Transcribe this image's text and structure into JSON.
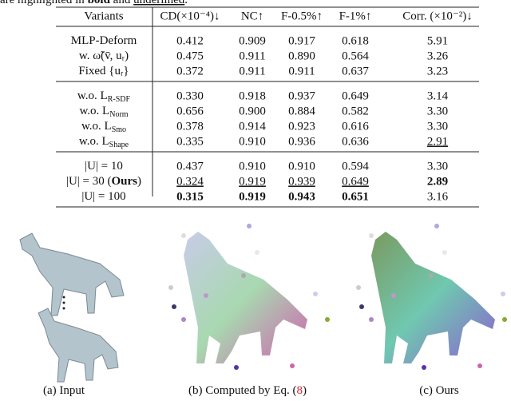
{
  "caption_fragment": [
    {
      "t": "are highlighted in "
    },
    {
      "t": "bold",
      "bold": true
    },
    {
      "t": " and "
    },
    {
      "t": "underlined",
      "underline": true
    },
    {
      "t": "."
    }
  ],
  "table": {
    "header": [
      "Variants",
      "CD(×10⁻⁴)↓",
      "NC↑",
      "F-0.5%↑",
      "F-1%↑",
      "Corr. (×10⁻²)↓"
    ],
    "groups": [
      [
        {
          "label": [
            {
              "t": "MLP-Deform"
            }
          ],
          "cells": [
            "0.412",
            "0.909",
            "0.917",
            "0.618",
            "5.91"
          ]
        },
        {
          "label": [
            {
              "t": "w. ω̃(v̄, uᵣ)"
            }
          ],
          "cells": [
            "0.475",
            "0.911",
            "0.890",
            "0.564",
            "3.26"
          ]
        },
        {
          "label": [
            {
              "t": "Fixed {uᵣ}"
            }
          ],
          "cells": [
            "0.372",
            "0.911",
            "0.911",
            "0.637",
            "3.23"
          ]
        }
      ],
      [
        {
          "label": [
            {
              "t": "w.o. L"
            },
            {
              "t": "R-SDF",
              "sub": true
            }
          ],
          "cells": [
            "0.330",
            "0.918",
            "0.937",
            "0.649",
            "3.14"
          ]
        },
        {
          "label": [
            {
              "t": "w.o. L"
            },
            {
              "t": "Norm",
              "sub": true
            }
          ],
          "cells": [
            "0.656",
            "0.900",
            "0.884",
            "0.582",
            "3.30"
          ]
        },
        {
          "label": [
            {
              "t": "w.o. L"
            },
            {
              "t": "Smo",
              "sub": true
            }
          ],
          "cells": [
            "0.378",
            "0.914",
            "0.923",
            "0.616",
            "3.30"
          ]
        },
        {
          "label": [
            {
              "t": "w.o. L"
            },
            {
              "t": "Shape",
              "sub": true
            }
          ],
          "cells": [
            "0.335",
            "0.910",
            "0.936",
            "0.636",
            "2.91"
          ],
          "underline": [
            4
          ]
        }
      ],
      [
        {
          "label": [
            {
              "t": "|U| = 10"
            }
          ],
          "cells": [
            "0.437",
            "0.910",
            "0.910",
            "0.594",
            "3.30"
          ]
        },
        {
          "label": [
            {
              "t": "|U| = 30 ("
            },
            {
              "t": "Ours",
              "bold": true
            },
            {
              "t": ")"
            }
          ],
          "cells": [
            "0.324",
            "0.919",
            "0.939",
            "0.649",
            "2.89"
          ],
          "underline": [
            0,
            1,
            2,
            3
          ],
          "bold": [
            4
          ]
        },
        {
          "label": [
            {
              "t": "|U| = 100"
            }
          ],
          "cells": [
            "0.315",
            "0.919",
            "0.943",
            "0.651",
            "3.16"
          ],
          "bold": [
            0,
            1,
            2,
            3
          ]
        }
      ]
    ]
  },
  "figure": {
    "captions": [
      [
        {
          "t": "(a) Input"
        }
      ],
      [
        {
          "t": "(b) Computed by Eq. ("
        },
        {
          "t": "8",
          "color": "#d62728"
        },
        {
          "t": ")"
        }
      ],
      [
        {
          "t": "(c) Ours"
        }
      ]
    ]
  }
}
